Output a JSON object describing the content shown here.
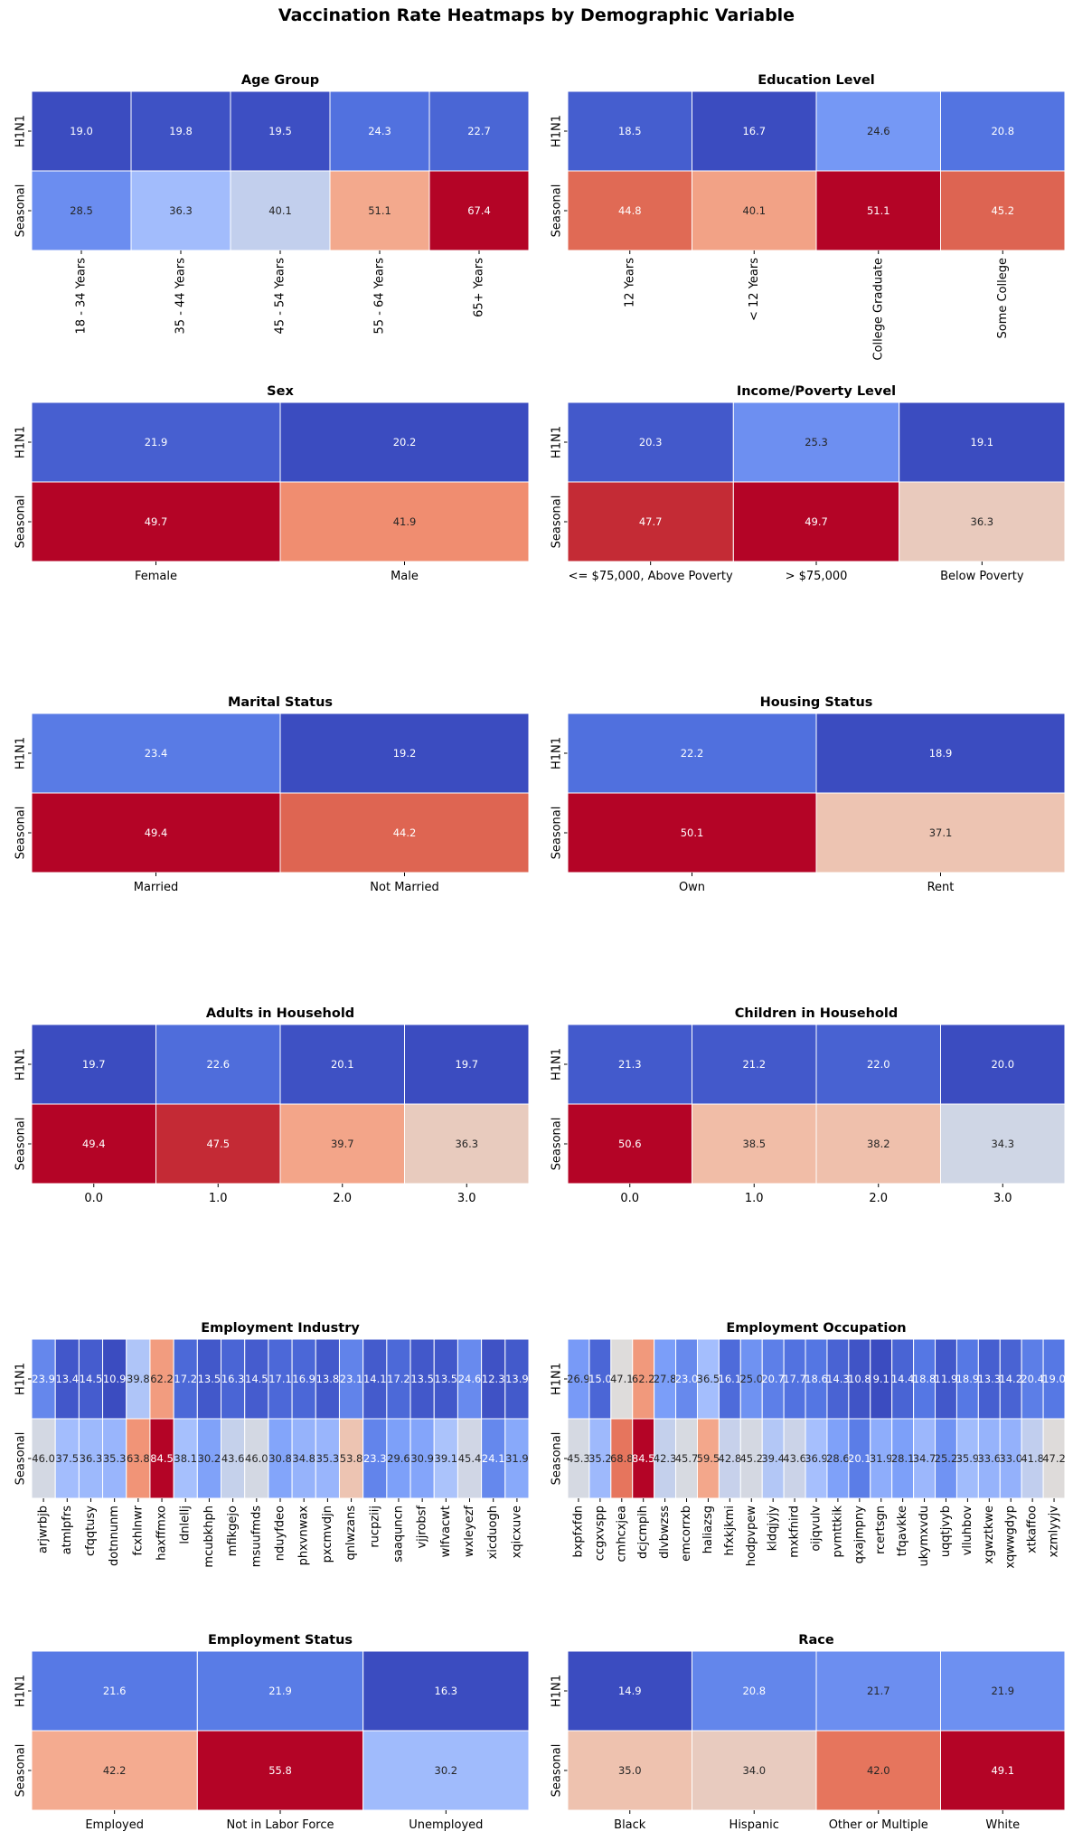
{
  "title": "Vaccination Rate Heatmaps by Demographic Variable",
  "chart_data": [
    {
      "type": "heatmap",
      "title": "Age Group",
      "rows": [
        "H1N1",
        "Seasonal"
      ],
      "categories": [
        "18 - 34 Years",
        "35 - 44 Years",
        "45 - 54 Years",
        "55 - 64 Years",
        "65+ Years"
      ],
      "values": [
        [
          19.0,
          19.8,
          19.5,
          24.3,
          22.7
        ],
        [
          28.5,
          36.3,
          40.1,
          51.1,
          67.4
        ]
      ],
      "xtick_rotation": 90
    },
    {
      "type": "heatmap",
      "title": "Education Level",
      "rows": [
        "H1N1",
        "Seasonal"
      ],
      "categories": [
        "12 Years",
        "< 12 Years",
        "College Graduate",
        "Some College"
      ],
      "values": [
        [
          18.5,
          16.7,
          24.6,
          20.8
        ],
        [
          44.8,
          40.1,
          51.1,
          45.2
        ]
      ],
      "xtick_rotation": 90
    },
    {
      "type": "heatmap",
      "title": "Sex",
      "rows": [
        "H1N1",
        "Seasonal"
      ],
      "categories": [
        "Female",
        "Male"
      ],
      "values": [
        [
          21.9,
          20.2
        ],
        [
          49.7,
          41.9
        ]
      ],
      "xtick_rotation": 0
    },
    {
      "type": "heatmap",
      "title": "Income/Poverty Level",
      "rows": [
        "H1N1",
        "Seasonal"
      ],
      "categories": [
        "<= $75,000, Above Poverty",
        "> $75,000",
        "Below Poverty"
      ],
      "values": [
        [
          20.3,
          25.3,
          19.1
        ],
        [
          47.7,
          49.7,
          36.3
        ]
      ],
      "xtick_rotation": 0
    },
    {
      "type": "heatmap",
      "title": "Marital Status",
      "rows": [
        "H1N1",
        "Seasonal"
      ],
      "categories": [
        "Married",
        "Not Married"
      ],
      "values": [
        [
          23.4,
          19.2
        ],
        [
          49.4,
          44.2
        ]
      ],
      "xtick_rotation": 0
    },
    {
      "type": "heatmap",
      "title": "Housing Status",
      "rows": [
        "H1N1",
        "Seasonal"
      ],
      "categories": [
        "Own",
        "Rent"
      ],
      "values": [
        [
          22.2,
          18.9
        ],
        [
          50.1,
          37.1
        ]
      ],
      "xtick_rotation": 0
    },
    {
      "type": "heatmap",
      "title": "Adults in Household",
      "rows": [
        "H1N1",
        "Seasonal"
      ],
      "categories": [
        "0.0",
        "1.0",
        "2.0",
        "3.0"
      ],
      "values": [
        [
          19.7,
          22.6,
          20.1,
          19.7
        ],
        [
          49.4,
          47.5,
          39.7,
          36.3
        ]
      ],
      "xtick_rotation": 0
    },
    {
      "type": "heatmap",
      "title": "Children in Household",
      "rows": [
        "H1N1",
        "Seasonal"
      ],
      "categories": [
        "0.0",
        "1.0",
        "2.0",
        "3.0"
      ],
      "values": [
        [
          21.3,
          21.2,
          22.0,
          20.0
        ],
        [
          50.6,
          38.5,
          38.2,
          34.3
        ]
      ],
      "xtick_rotation": 0
    },
    {
      "type": "heatmap",
      "title": "Employment Industry",
      "rows": [
        "H1N1",
        "Seasonal"
      ],
      "categories": [
        "arjwrbjb",
        "atmlpfrs",
        "cfqqtusy",
        "dotnnunm",
        "fcxhlnwr",
        "haxffmxo",
        "ldnlellj",
        "mcubkhph",
        "mfikgejo",
        "msuufmds",
        "nduyfdeo",
        "phxvnwax",
        "pxcmvdjn",
        "qnlwzans",
        "rucpziij",
        "saaquncn",
        "vjjrobsf",
        "wlfvacwt",
        "wxleyezf",
        "xicduogh",
        "xqicxuve"
      ],
      "values": [
        [
          23.9,
          13.4,
          14.5,
          10.9,
          39.8,
          62.2,
          17.2,
          13.5,
          16.3,
          14.5,
          17.1,
          16.9,
          13.8,
          23.1,
          14.1,
          17.2,
          13.5,
          13.5,
          24.6,
          12.3,
          13.9
        ],
        [
          46.0,
          37.5,
          36.3,
          35.3,
          63.8,
          84.5,
          38.1,
          30.2,
          43.6,
          46.0,
          30.8,
          34.8,
          35.3,
          53.8,
          23.3,
          29.6,
          30.9,
          39.1,
          45.4,
          24.1,
          31.9
        ]
      ],
      "xtick_rotation": 90
    },
    {
      "type": "heatmap",
      "title": "Employment Occupation",
      "rows": [
        "H1N1",
        "Seasonal"
      ],
      "categories": [
        "bxpfxfdn",
        "ccgxvspp",
        "cmhcxjea",
        "dcjcmpih",
        "dlvbwzss",
        "emcorrxb",
        "haliazsg",
        "hfxkjkmi",
        "hodpvpew",
        "kldqjyjy",
        "mxkfnird",
        "oijqvulv",
        "pvmttkik",
        "qxajmpny",
        "rcertsgn",
        "tfqavkke",
        "ukymxvdu",
        "uqqtjvyb",
        "vlluhbov",
        "xgwztkwe",
        "xqwwgdyp",
        "xtkaffoo",
        "xzmlyyjv"
      ],
      "values": [
        [
          26.9,
          15.0,
          47.1,
          62.2,
          27.8,
          23.0,
          36.5,
          16.1,
          25.0,
          20.7,
          17.7,
          18.6,
          14.3,
          10.8,
          9.1,
          14.4,
          18.8,
          11.9,
          18.9,
          13.3,
          14.2,
          20.4,
          19.0
        ],
        [
          45.3,
          35.2,
          68.8,
          84.5,
          42.3,
          45.7,
          59.5,
          42.8,
          45.2,
          39.4,
          43.6,
          36.9,
          28.6,
          20.1,
          31.9,
          28.1,
          34.7,
          25.2,
          35.9,
          33.6,
          33.0,
          41.8,
          47.2
        ]
      ],
      "xtick_rotation": 90
    },
    {
      "type": "heatmap",
      "title": "Employment Status",
      "rows": [
        "H1N1",
        "Seasonal"
      ],
      "categories": [
        "Employed",
        "Not in Labor Force",
        "Unemployed"
      ],
      "values": [
        [
          21.6,
          21.9,
          16.3
        ],
        [
          42.2,
          55.8,
          30.2
        ]
      ],
      "xtick_rotation": 0
    },
    {
      "type": "heatmap",
      "title": "Race",
      "rows": [
        "H1N1",
        "Seasonal"
      ],
      "categories": [
        "Black",
        "Hispanic",
        "Other or Multiple",
        "White"
      ],
      "values": [
        [
          14.9,
          20.8,
          21.7,
          21.9
        ],
        [
          35.0,
          34.0,
          42.0,
          49.1
        ]
      ],
      "xtick_rotation": 0
    }
  ]
}
